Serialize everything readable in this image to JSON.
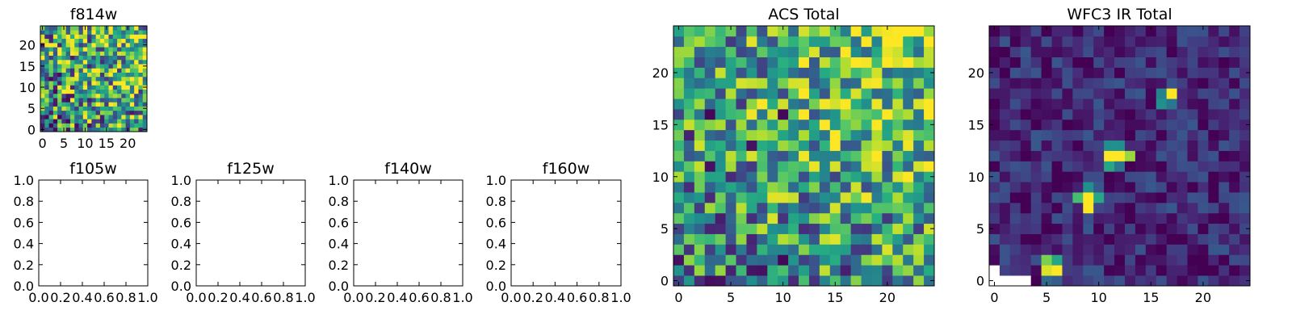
{
  "chart_data": [
    {
      "type": "heatmap",
      "title": "f814w",
      "xlabel": "",
      "ylabel": "",
      "xlim": [
        -0.5,
        24.5
      ],
      "ylim": [
        -0.5,
        24.5
      ],
      "xticks": [
        0,
        5,
        10,
        15,
        20
      ],
      "yticks": [
        0,
        5,
        10,
        15,
        20
      ],
      "xtick_labels": [
        "0",
        "5",
        "10",
        "15",
        "20"
      ],
      "ytick_labels": [
        "0",
        "5",
        "10",
        "15",
        "20"
      ],
      "grid": false,
      "colormap": "viridis",
      "grid_size": [
        25,
        25
      ],
      "value_range": [
        0,
        1
      ],
      "generator": {
        "kind": "noise",
        "seed": 11,
        "base": 0.6,
        "spread": 0.5,
        "gradient_to": [
          22,
          18
        ],
        "gradient_strength": 0.25
      }
    },
    {
      "type": "empty",
      "title": "f105w",
      "xlim": [
        0,
        1
      ],
      "ylim": [
        0,
        1
      ],
      "xticks": [
        0,
        0.2,
        0.4,
        0.6,
        0.8,
        1.0
      ],
      "yticks": [
        0,
        0.2,
        0.4,
        0.6,
        0.8,
        1.0
      ],
      "xtick_labels": [
        "0.0",
        "0.2",
        "0.4",
        "0.6",
        "0.8",
        "1.0"
      ],
      "ytick_labels": [
        "0.0",
        "0.2",
        "0.4",
        "0.6",
        "0.8",
        "1.0"
      ],
      "grid": false
    },
    {
      "type": "empty",
      "title": "f125w",
      "xlim": [
        0,
        1
      ],
      "ylim": [
        0,
        1
      ],
      "xticks": [
        0,
        0.2,
        0.4,
        0.6,
        0.8,
        1.0
      ],
      "yticks": [
        0,
        0.2,
        0.4,
        0.6,
        0.8,
        1.0
      ],
      "xtick_labels": [
        "0.0",
        "0.2",
        "0.4",
        "0.6",
        "0.8",
        "1.0"
      ],
      "ytick_labels": [
        "0.0",
        "0.2",
        "0.4",
        "0.6",
        "0.8",
        "1.0"
      ],
      "grid": false
    },
    {
      "type": "empty",
      "title": "f140w",
      "xlim": [
        0,
        1
      ],
      "ylim": [
        0,
        1
      ],
      "xticks": [
        0,
        0.2,
        0.4,
        0.6,
        0.8,
        1.0
      ],
      "yticks": [
        0,
        0.2,
        0.4,
        0.6,
        0.8,
        1.0
      ],
      "xtick_labels": [
        "0.0",
        "0.2",
        "0.4",
        "0.6",
        "0.8",
        "1.0"
      ],
      "ytick_labels": [
        "0.0",
        "0.2",
        "0.4",
        "0.6",
        "0.8",
        "1.0"
      ],
      "grid": false
    },
    {
      "type": "empty",
      "title": "f160w",
      "xlim": [
        0,
        1
      ],
      "ylim": [
        0,
        1
      ],
      "xticks": [
        0,
        0.2,
        0.4,
        0.6,
        0.8,
        1.0
      ],
      "yticks": [
        0,
        0.2,
        0.4,
        0.6,
        0.8,
        1.0
      ],
      "xtick_labels": [
        "0.0",
        "0.2",
        "0.4",
        "0.6",
        "0.8",
        "1.0"
      ],
      "ytick_labels": [
        "0.0",
        "0.2",
        "0.4",
        "0.6",
        "0.8",
        "1.0"
      ],
      "grid": false
    },
    {
      "type": "heatmap",
      "title": "ACS Total",
      "xlabel": "",
      "ylabel": "",
      "xlim": [
        -0.5,
        24.5
      ],
      "ylim": [
        -0.5,
        24.5
      ],
      "xticks": [
        0,
        5,
        10,
        15,
        20
      ],
      "yticks": [
        0,
        5,
        10,
        15,
        20
      ],
      "xtick_labels": [
        "0",
        "5",
        "10",
        "15",
        "20"
      ],
      "ytick_labels": [
        "0",
        "5",
        "10",
        "15",
        "20"
      ],
      "grid": false,
      "colormap": "viridis",
      "grid_size": [
        25,
        25
      ],
      "value_range": [
        0,
        1
      ],
      "generator": {
        "kind": "noise",
        "seed": 37,
        "base": 0.62,
        "spread": 0.42,
        "gradient_to": [
          21,
          22
        ],
        "gradient_strength": 0.3
      },
      "hotspots": [
        {
          "x": 20,
          "y": 23,
          "value": 1.0
        },
        {
          "x": 21,
          "y": 23,
          "value": 1.0
        },
        {
          "x": 20,
          "y": 22,
          "value": 0.97
        },
        {
          "x": 21,
          "y": 21,
          "value": 0.95
        },
        {
          "x": 24,
          "y": 17,
          "value": 1.0
        },
        {
          "x": 23,
          "y": 17,
          "value": 0.95
        },
        {
          "x": 24,
          "y": 11,
          "value": 1.0
        },
        {
          "x": 20,
          "y": 3,
          "value": 0.95
        },
        {
          "x": 3,
          "y": 16,
          "value": 0.02
        },
        {
          "x": 10,
          "y": 16,
          "value": 0.02
        },
        {
          "x": 7,
          "y": 13,
          "value": 0.05
        },
        {
          "x": 3,
          "y": 11,
          "value": 0.05
        },
        {
          "x": 10,
          "y": 2,
          "value": 0.02
        },
        {
          "x": 8,
          "y": 1,
          "value": 0.05
        },
        {
          "x": 0,
          "y": 2,
          "value": 0.05
        }
      ]
    },
    {
      "type": "heatmap",
      "title": "WFC3 IR Total",
      "xlabel": "",
      "ylabel": "",
      "xlim": [
        -0.5,
        24.5
      ],
      "ylim": [
        -0.5,
        24.5
      ],
      "xticks": [
        0,
        5,
        10,
        15,
        20
      ],
      "yticks": [
        0,
        5,
        10,
        15,
        20
      ],
      "xtick_labels": [
        "0",
        "5",
        "10",
        "15",
        "20"
      ],
      "ytick_labels": [
        "0",
        "5",
        "10",
        "15",
        "20"
      ],
      "grid": false,
      "colormap": "viridis",
      "grid_size": [
        25,
        25
      ],
      "value_range": [
        0,
        1
      ],
      "generator": {
        "kind": "noise",
        "seed": 73,
        "base": 0.12,
        "spread": 0.16
      },
      "hotspots": [
        {
          "x": 17,
          "y": 18,
          "value": 1.0
        },
        {
          "x": 16,
          "y": 18,
          "value": 0.45
        },
        {
          "x": 16,
          "y": 17,
          "value": 0.5
        },
        {
          "x": 17,
          "y": 17,
          "value": 0.4
        },
        {
          "x": 11,
          "y": 12,
          "value": 1.0
        },
        {
          "x": 12,
          "y": 12,
          "value": 1.0
        },
        {
          "x": 13,
          "y": 12,
          "value": 0.85
        },
        {
          "x": 11,
          "y": 13,
          "value": 0.5
        },
        {
          "x": 12,
          "y": 13,
          "value": 0.5
        },
        {
          "x": 11,
          "y": 11,
          "value": 0.6
        },
        {
          "x": 12,
          "y": 11,
          "value": 0.4
        },
        {
          "x": 9,
          "y": 8,
          "value": 1.0
        },
        {
          "x": 9,
          "y": 7,
          "value": 1.0
        },
        {
          "x": 8,
          "y": 8,
          "value": 0.7
        },
        {
          "x": 10,
          "y": 8,
          "value": 0.6
        },
        {
          "x": 9,
          "y": 9,
          "value": 0.5
        },
        {
          "x": 5,
          "y": 1,
          "value": 0.95
        },
        {
          "x": 6,
          "y": 1,
          "value": 1.0
        },
        {
          "x": 5,
          "y": 2,
          "value": 0.8
        },
        {
          "x": 6,
          "y": 2,
          "value": 0.6
        },
        {
          "x": 5,
          "y": 0,
          "value": 0.35
        },
        {
          "x": 6,
          "y": 0,
          "value": 0.3
        }
      ],
      "blank_cells": [
        {
          "x": 0,
          "y": 0
        },
        {
          "x": 1,
          "y": 0
        },
        {
          "x": 2,
          "y": 0
        },
        {
          "x": 3,
          "y": 0
        },
        {
          "x": 0,
          "y": 1
        }
      ]
    }
  ]
}
